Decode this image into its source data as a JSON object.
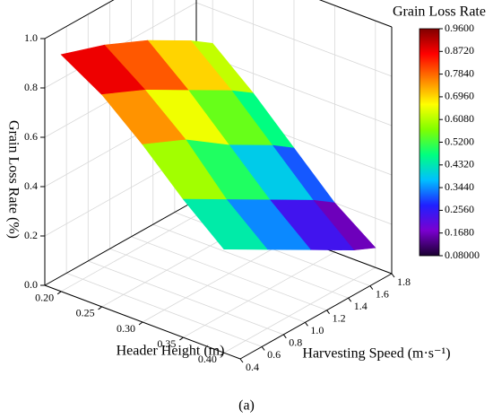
{
  "chart_data": {
    "type": "surface",
    "zlabel": "Grain Loss Rate (%)",
    "xlabel": "Header Height (m)",
    "ylabel": "Harvesting Speed (m·s⁻¹)",
    "caption": "(a)",
    "x": [
      0.2,
      0.25,
      0.3,
      0.35,
      0.4
    ],
    "y": [
      0.4,
      0.8,
      1.2,
      1.6,
      1.8
    ],
    "z": [
      [
        0.96,
        0.9,
        0.82,
        0.72,
        0.66
      ],
      [
        0.86,
        0.78,
        0.68,
        0.58,
        0.52
      ],
      [
        0.72,
        0.64,
        0.52,
        0.42,
        0.36
      ],
      [
        0.56,
        0.46,
        0.36,
        0.26,
        0.2
      ],
      [
        0.42,
        0.32,
        0.22,
        0.12,
        0.08
      ]
    ],
    "xlim": [
      0.18,
      0.42
    ],
    "xticks": [
      {
        "value": 0.2,
        "label": "0.20"
      },
      0.25,
      {
        "value": 0.3,
        "label": "0.30"
      },
      0.35,
      {
        "value": 0.4,
        "label": "0.40"
      }
    ],
    "ylim": [
      0.4,
      1.8
    ],
    "yticks": [
      0.4,
      0.6,
      0.8,
      {
        "value": 1,
        "label": "1.0"
      },
      1.2,
      1.4,
      1.6,
      1.8
    ],
    "zlim": [
      0,
      1
    ],
    "zticks": [
      {
        "value": 0,
        "label": "0.0"
      },
      0.2,
      0.4,
      0.6,
      0.8,
      {
        "value": 1,
        "label": "1.0"
      }
    ],
    "colorbar_title": "Grain Loss Rate",
    "clim": [
      0.08,
      0.96
    ],
    "cticks": [
      {
        "value": 0.08,
        "label": "0.08000"
      },
      {
        "value": 0.168,
        "label": "0.1680"
      },
      {
        "value": 0.256,
        "label": "0.2560"
      },
      {
        "value": 0.344,
        "label": "0.3440"
      },
      {
        "value": 0.432,
        "label": "0.4320"
      },
      {
        "value": 0.52,
        "label": "0.5200"
      },
      {
        "value": 0.608,
        "label": "0.6080"
      },
      {
        "value": 0.696,
        "label": "0.6960"
      },
      {
        "value": 0.784,
        "label": "0.7840"
      },
      {
        "value": 0.872,
        "label": "0.8720"
      },
      {
        "value": 0.96,
        "label": "0.9600"
      }
    ],
    "colormap": [
      "#1a0030",
      "#7a00d0",
      "#2020ff",
      "#00c0ff",
      "#00ff80",
      "#80ff00",
      "#ffff00",
      "#ff8000",
      "#ff0000",
      "#800000"
    ],
    "grid": true
  }
}
